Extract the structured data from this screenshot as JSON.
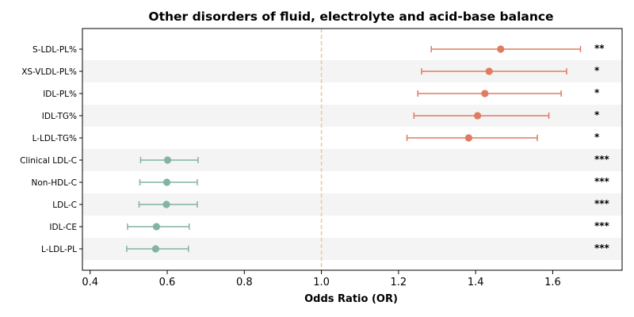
{
  "chart_data": {
    "type": "forest",
    "title": "Other disorders of fluid, electrolyte and acid-base balance",
    "xlabel": "Odds Ratio (OR)",
    "ylabel": "",
    "xlim": [
      0.38,
      1.78
    ],
    "xticks": [
      "0.4",
      "0.6",
      "0.8",
      "1.0",
      "1.2",
      "1.4",
      "1.6"
    ],
    "reference_line": 1.0,
    "colors": {
      "positive": "#e07b62",
      "negative": "#82b4a0",
      "reference": "#f0c98a",
      "band": "#f4f4f4"
    },
    "rows": [
      {
        "label": "S-LDL-PL%",
        "or": 1.465,
        "lo": 1.285,
        "hi": 1.672,
        "sig": "**"
      },
      {
        "label": "XS-VLDL-PL%",
        "or": 1.435,
        "lo": 1.26,
        "hi": 1.636,
        "sig": "*"
      },
      {
        "label": "IDL-PL%",
        "or": 1.424,
        "lo": 1.25,
        "hi": 1.622,
        "sig": "*"
      },
      {
        "label": "IDL-TG%",
        "or": 1.405,
        "lo": 1.24,
        "hi": 1.59,
        "sig": "*"
      },
      {
        "label": "L-LDL-TG%",
        "or": 1.382,
        "lo": 1.222,
        "hi": 1.56,
        "sig": "*"
      },
      {
        "label": "Clinical LDL-C",
        "or": 0.601,
        "lo": 0.531,
        "hi": 0.68,
        "sig": "***"
      },
      {
        "label": "Non-HDL-C",
        "or": 0.599,
        "lo": 0.529,
        "hi": 0.678,
        "sig": "***"
      },
      {
        "label": "LDL-C",
        "or": 0.598,
        "lo": 0.527,
        "hi": 0.678,
        "sig": "***"
      },
      {
        "label": "IDL-CE",
        "or": 0.572,
        "lo": 0.497,
        "hi": 0.657,
        "sig": "***"
      },
      {
        "label": "L-LDL-PL",
        "or": 0.57,
        "lo": 0.495,
        "hi": 0.655,
        "sig": "***"
      }
    ]
  }
}
